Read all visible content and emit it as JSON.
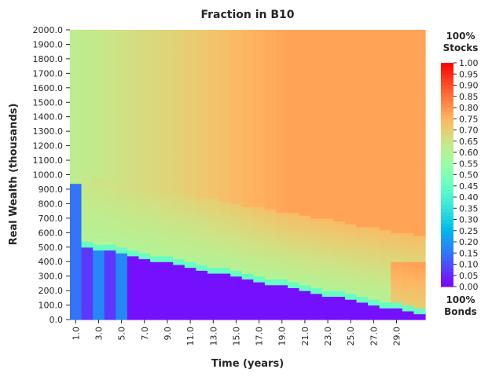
{
  "chart_data": {
    "type": "heatmap",
    "title": "Fraction in B10",
    "xlabel": "Time (years)",
    "ylabel": "Real Wealth (thousands)",
    "x_tick_labels": [
      "1.0",
      "3.0",
      "5.0",
      "7.0",
      "9.0",
      "11.0",
      "13.0",
      "15.0",
      "17.0",
      "19.0",
      "21.0",
      "23.0",
      "25.0",
      "27.0",
      "29.0"
    ],
    "y_tick_labels": [
      "0.0",
      "100.0",
      "200.0",
      "300.0",
      "400.0",
      "500.0",
      "600.0",
      "700.0",
      "800.0",
      "900.0",
      "1000.0",
      "1100.0",
      "1200.0",
      "1300.0",
      "1400.0",
      "1500.0",
      "1600.0",
      "1700.0",
      "1800.0",
      "1900.0",
      "2000.0"
    ],
    "x_range": [
      1,
      31
    ],
    "y_range": [
      0,
      2000
    ],
    "colorbar": {
      "label_top": "100%\nStocks",
      "label_bottom": "100%\nBonds",
      "range": [
        0,
        1
      ],
      "tick_labels": [
        "0.00",
        "0.05",
        "0.10",
        "0.15",
        "0.20",
        "0.25",
        "0.30",
        "0.35",
        "0.40",
        "0.45",
        "0.50",
        "0.55",
        "0.60",
        "0.65",
        "0.70",
        "0.75",
        "0.80",
        "0.85",
        "0.90",
        "0.95",
        "1.00"
      ],
      "colormap": "rainbow"
    },
    "description_of_values": {
      "high_wealth_late_years": 0.78,
      "high_wealth_early_years": 0.62,
      "low_wealth_region": 0.0,
      "year1_below_950": 0.15,
      "transition_boundary_year1": 950,
      "transition_boundary_year31": 70
    }
  }
}
